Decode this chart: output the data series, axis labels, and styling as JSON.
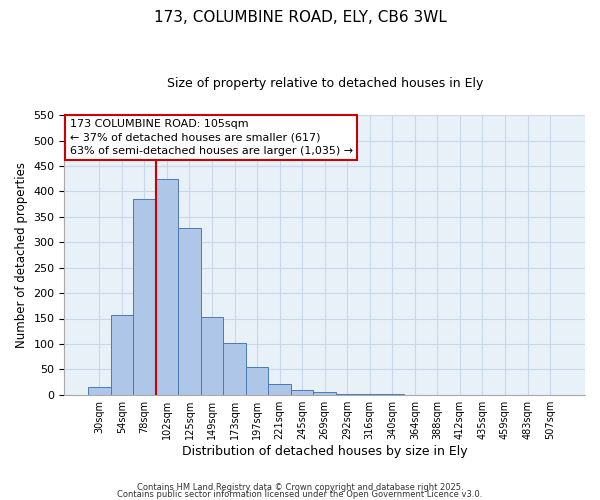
{
  "title": "173, COLUMBINE ROAD, ELY, CB6 3WL",
  "subtitle": "Size of property relative to detached houses in Ely",
  "xlabel": "Distribution of detached houses by size in Ely",
  "ylabel": "Number of detached properties",
  "bin_labels": [
    "30sqm",
    "54sqm",
    "78sqm",
    "102sqm",
    "125sqm",
    "149sqm",
    "173sqm",
    "197sqm",
    "221sqm",
    "245sqm",
    "269sqm",
    "292sqm",
    "316sqm",
    "340sqm",
    "364sqm",
    "388sqm",
    "412sqm",
    "435sqm",
    "459sqm",
    "483sqm",
    "507sqm"
  ],
  "bar_values": [
    15,
    157,
    385,
    425,
    328,
    153,
    102,
    55,
    22,
    10,
    5,
    2,
    1,
    1,
    0,
    0,
    0,
    0,
    0,
    0,
    0
  ],
  "bar_color": "#aec6e8",
  "bar_edge_color": "#4a7ab5",
  "vline_x": 2.5,
  "vline_color": "#cc0000",
  "annotation_title": "173 COLUMBINE ROAD: 105sqm",
  "annotation_line1": "← 37% of detached houses are smaller (617)",
  "annotation_line2": "63% of semi-detached houses are larger (1,035) →",
  "annotation_box_facecolor": "#ffffff",
  "annotation_box_edgecolor": "#cc0000",
  "ylim": [
    0,
    550
  ],
  "yticks": [
    0,
    50,
    100,
    150,
    200,
    250,
    300,
    350,
    400,
    450,
    500,
    550
  ],
  "plot_bg_color": "#e8f0f8",
  "fig_bg_color": "#ffffff",
  "grid_color": "#c8d8e8",
  "footer_line1": "Contains HM Land Registry data © Crown copyright and database right 2025.",
  "footer_line2": "Contains public sector information licensed under the Open Government Licence v3.0."
}
